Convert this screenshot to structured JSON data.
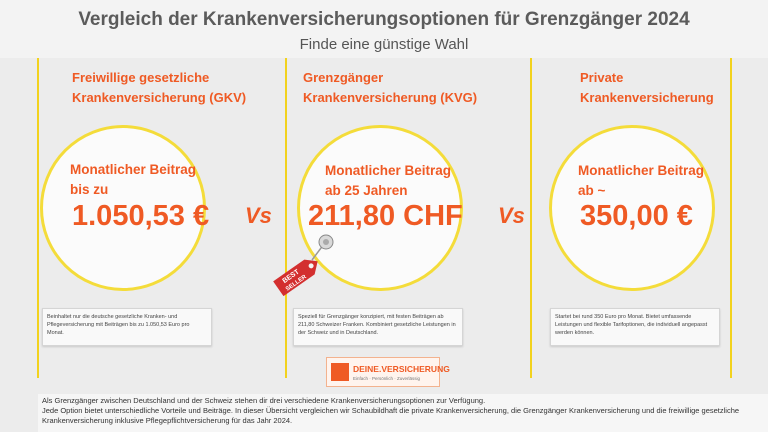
{
  "header": {
    "title": "Vergleich der Krankenversicherungsoptionen für Grenzgänger 2024",
    "subtitle": "Finde eine günstige Wahl"
  },
  "options": [
    {
      "title_line1": "Freiwillige gesetzliche",
      "title_line2": "Krankenversicherung (GKV)",
      "label_line1": "Monatlicher Beitrag",
      "label_line2": "bis zu",
      "price": "1.050,53 €",
      "description": "Beinhaltet nur die deutsche gesetzliche Kranken- und Pflegeversicherung mit Beiträgen bis zu 1.050,53 Euro pro Monat."
    },
    {
      "title_line1": "Grenzgänger",
      "title_line2": "Krankenversicherung (KVG)",
      "label_line1": "Monatlicher Beitrag",
      "label_line2": "ab 25 Jahren",
      "price": "211,80 CHF",
      "description": "Speziell für Grenzgänger konzipiert, mit festen Beiträgen ab 211,80 Schweizer Franken. Kombiniert gesetzliche Leistungen in der Schweiz und in Deutschland."
    },
    {
      "title_line1": "Private",
      "title_line2": "Krankenversicherung",
      "label_line1": "Monatlicher Beitrag",
      "label_line2": "ab ~",
      "price": "350,00 €",
      "description": "Startet bei rund 350 Euro pro Monat. Bietet umfassende Leistungen und flexible Tarifoptionen, die individuell angepasst werden können."
    }
  ],
  "vs_label": "Vs",
  "badge": {
    "line1": "BEST",
    "line2": "SELLER"
  },
  "logo": {
    "name": "DEINE.VERSICHERUNG",
    "tagline": "Einfach · Persönlich · Zuverlässig"
  },
  "footer": {
    "line1": "Als Grenzgänger zwischen Deutschland und der Schweiz stehen dir drei verschiedene Krankenversicherungsoptionen zur Verfügung.",
    "line2": "Jede Option bietet unterschiedliche Vorteile und Beiträge. In dieser Übersicht vergleichen wir Schaubildhaft die private Krankenversicherung, die Grenzgänger Krankenversicherung und die freiwillige gesetzliche Krankenversicherung inklusive Pflegepflichtversicherung für das Jahr 2024."
  },
  "colors": {
    "accent": "#ef5a24",
    "frame": "#f2d21e",
    "background": "#ececec"
  }
}
